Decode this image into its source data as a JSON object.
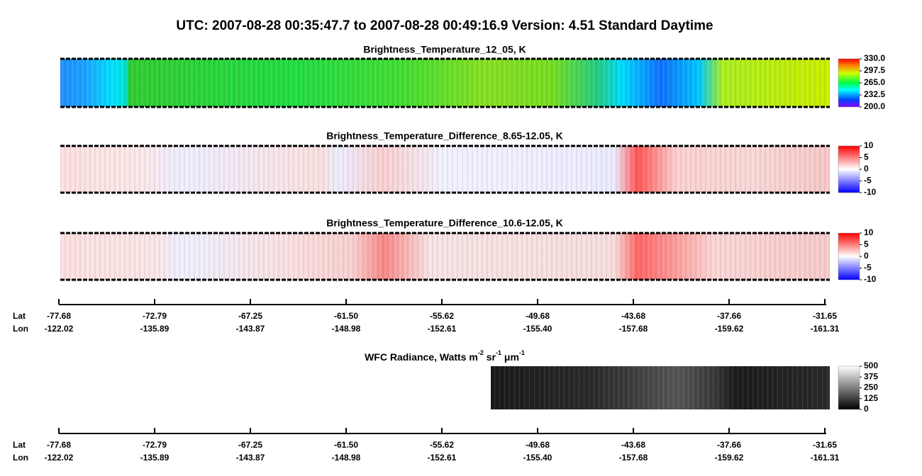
{
  "title": "UTC:  2007-08-28   00:35:47.7  to  2007-08-28   00:49:16.9    Version: 4.51  Standard Daytime",
  "panels": [
    {
      "title": "Brightness_Temperature_12_05, K",
      "colorbar": {
        "lim": [
          200,
          330
        ],
        "ticks": [
          {
            "value": 330,
            "label": "330.0"
          },
          {
            "value": 297.5,
            "label": "297.5"
          },
          {
            "value": 265,
            "label": "265.0"
          },
          {
            "value": 232.5,
            "label": "232.5"
          },
          {
            "value": 200,
            "label": "200.0"
          }
        ]
      }
    },
    {
      "title": "Brightness_Temperature_Difference_8.65-12.05, K",
      "colorbar": {
        "lim": [
          -10,
          10
        ],
        "ticks": [
          10,
          5,
          0,
          -5,
          -10
        ]
      }
    },
    {
      "title": "Brightness_Temperature_Difference_10.6-12.05, K",
      "colorbar": {
        "lim": [
          -10,
          10
        ],
        "ticks": [
          10,
          5,
          0,
          -5,
          -10
        ]
      }
    },
    {
      "title_parts": [
        "WFC Radiance, Watts m",
        "-2",
        " sr",
        "-1",
        " μm",
        "-1"
      ],
      "colorbar": {
        "lim": [
          0,
          500
        ],
        "ticks": [
          500,
          375,
          250,
          125,
          0
        ]
      }
    }
  ],
  "axis": {
    "lat_label": "Lat",
    "lon_label": "Lon",
    "lat": [
      -77.68,
      -72.79,
      -67.25,
      {
        "value": -61.5,
        "label": "-61.50"
      },
      -55.62,
      -49.68,
      -43.68,
      -37.66,
      -31.65
    ],
    "lon": [
      -122.02,
      -135.89,
      -143.87,
      -148.98,
      -152.61,
      {
        "value": -155.4,
        "label": "-155.40"
      },
      -157.68,
      -159.62,
      -161.31
    ]
  }
}
